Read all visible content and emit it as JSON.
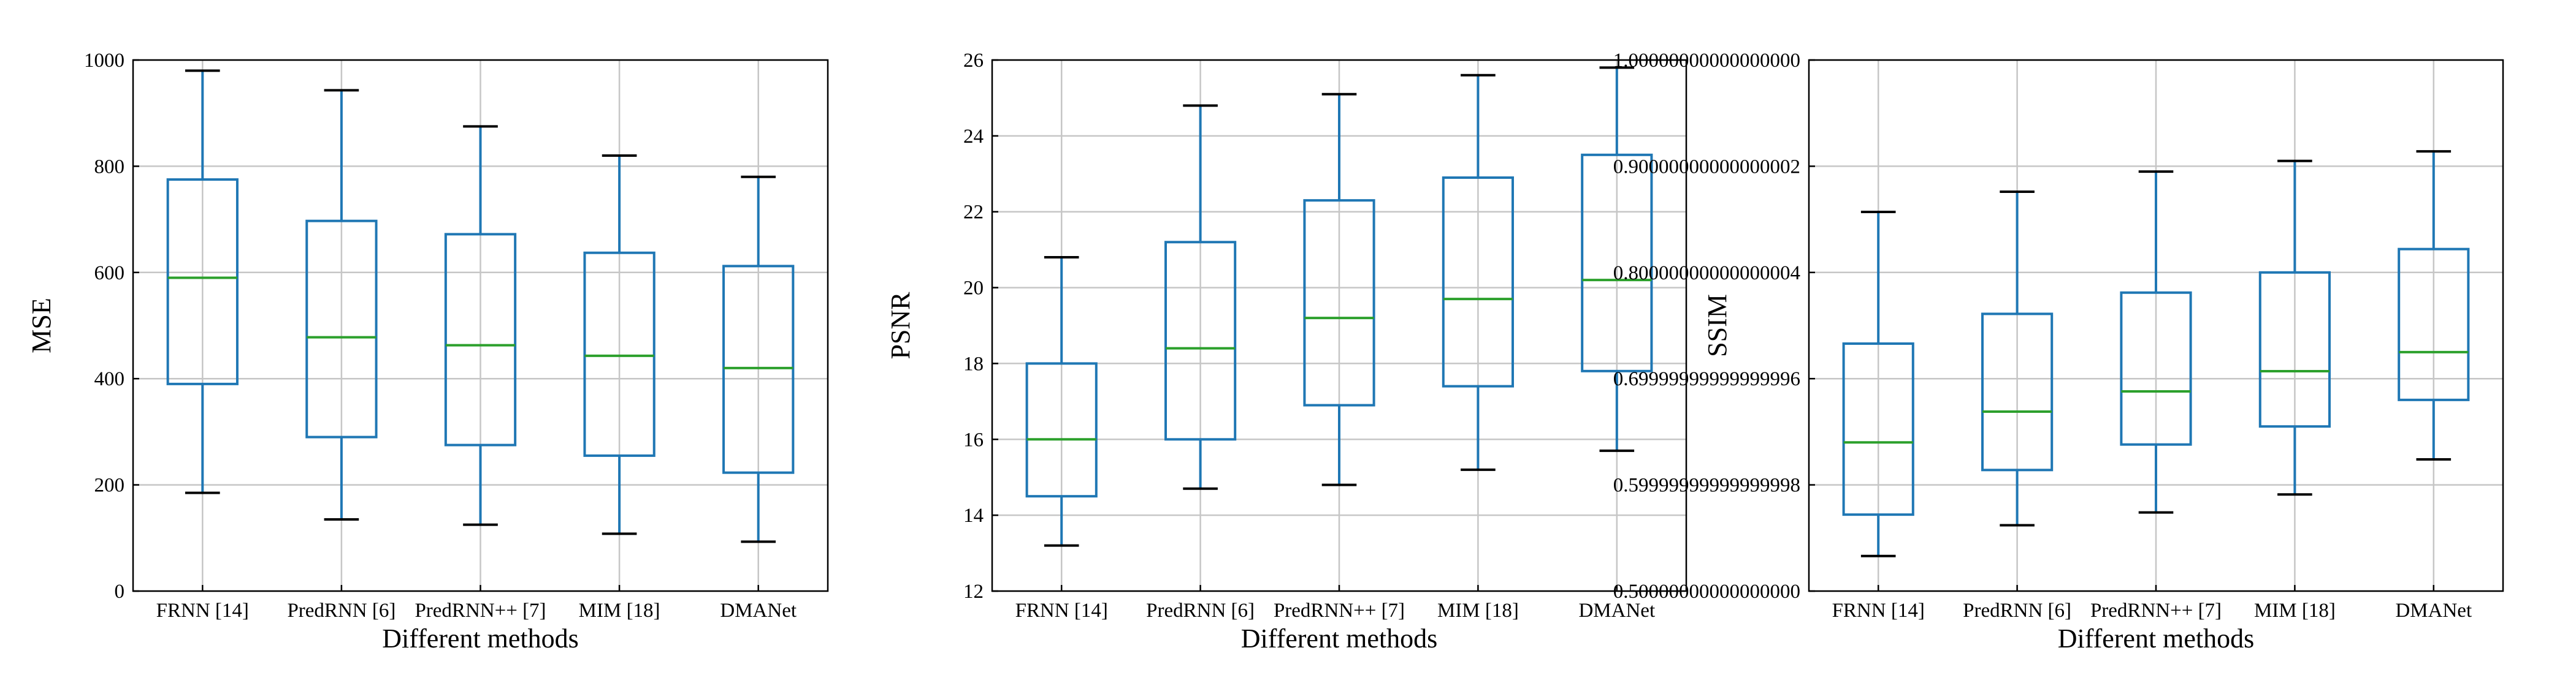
{
  "chart_data": [
    {
      "type": "boxplot",
      "xlabel": "Different methods",
      "ylabel": "MSE",
      "ylim": [
        0,
        1000
      ],
      "yticks": [
        0,
        200,
        400,
        600,
        800,
        1000
      ],
      "grid": true,
      "categories": [
        "FRNN [14]",
        "PredRNN [6]",
        "PredRNN++ [7]",
        "MIM [18]",
        "DMANet"
      ],
      "boxes": [
        {
          "whisker_low": 185,
          "q1": 390,
          "median": 590,
          "q3": 775,
          "whisker_high": 980
        },
        {
          "whisker_low": 135,
          "q1": 290,
          "median": 478,
          "q3": 697,
          "whisker_high": 943
        },
        {
          "whisker_low": 125,
          "q1": 275,
          "median": 463,
          "q3": 672,
          "whisker_high": 875
        },
        {
          "whisker_low": 108,
          "q1": 255,
          "median": 443,
          "q3": 637,
          "whisker_high": 820
        },
        {
          "whisker_low": 93,
          "q1": 223,
          "median": 420,
          "q3": 612,
          "whisker_high": 780
        }
      ]
    },
    {
      "type": "boxplot",
      "xlabel": "Different methods",
      "ylabel": "PSNR",
      "ylim": [
        12,
        26
      ],
      "yticks": [
        12,
        14,
        16,
        18,
        20,
        22,
        24,
        26
      ],
      "grid": true,
      "categories": [
        "FRNN [14]",
        "PredRNN [6]",
        "PredRNN++ [7]",
        "MIM [18]",
        "DMANet"
      ],
      "boxes": [
        {
          "whisker_low": 13.2,
          "q1": 14.5,
          "median": 16.0,
          "q3": 18.0,
          "whisker_high": 20.8
        },
        {
          "whisker_low": 14.7,
          "q1": 16.0,
          "median": 18.4,
          "q3": 21.2,
          "whisker_high": 24.8
        },
        {
          "whisker_low": 14.8,
          "q1": 16.9,
          "median": 19.2,
          "q3": 22.3,
          "whisker_high": 25.1
        },
        {
          "whisker_low": 15.2,
          "q1": 17.4,
          "median": 19.7,
          "q3": 22.9,
          "whisker_high": 25.6
        },
        {
          "whisker_low": 15.7,
          "q1": 17.8,
          "median": 20.2,
          "q3": 23.5,
          "whisker_high": 25.8
        }
      ]
    },
    {
      "type": "boxplot",
      "xlabel": "Different methods",
      "ylabel": "SSIM",
      "ylim": [
        0.5,
        1.0
      ],
      "yticks": [
        0.5,
        0.6,
        0.7,
        0.8,
        0.9,
        1.0
      ],
      "grid": true,
      "categories": [
        "FRNN [14]",
        "PredRNN [6]",
        "PredRNN++ [7]",
        "MIM [18]",
        "DMANet"
      ],
      "boxes": [
        {
          "whisker_low": 0.533,
          "q1": 0.572,
          "median": 0.64,
          "q3": 0.733,
          "whisker_high": 0.857
        },
        {
          "whisker_low": 0.562,
          "q1": 0.614,
          "median": 0.669,
          "q3": 0.761,
          "whisker_high": 0.876
        },
        {
          "whisker_low": 0.574,
          "q1": 0.638,
          "median": 0.688,
          "q3": 0.781,
          "whisker_high": 0.895
        },
        {
          "whisker_low": 0.591,
          "q1": 0.655,
          "median": 0.707,
          "q3": 0.8,
          "whisker_high": 0.905
        },
        {
          "whisker_low": 0.624,
          "q1": 0.68,
          "median": 0.725,
          "q3": 0.822,
          "whisker_high": 0.914
        }
      ]
    }
  ],
  "colors": {
    "box": "#1f77b4",
    "median": "#2ca02c",
    "cap": "#000000",
    "grid": "#c6c6c6"
  }
}
